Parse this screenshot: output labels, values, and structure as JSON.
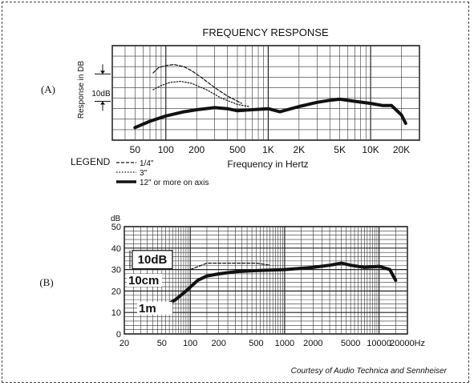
{
  "chart_data": [
    {
      "type": "line",
      "panel_label": "(A)",
      "title": "FREQUENCY RESPONSE",
      "xlabel": "Frequency in Hertz",
      "ylabel": "Response in DB",
      "scale_label": "10dB",
      "x_scale": "log",
      "xlim": [
        30,
        30000
      ],
      "ylim": [
        0,
        9
      ],
      "x_ticks": [
        {
          "label": "50",
          "value": 50
        },
        {
          "label": "100",
          "value": 100
        },
        {
          "label": "200",
          "value": 200
        },
        {
          "label": "500",
          "value": 500
        },
        {
          "label": "1K",
          "value": 1000
        },
        {
          "label": "2K",
          "value": 2000
        },
        {
          "label": "5K",
          "value": 5000
        },
        {
          "label": "10K",
          "value": 10000
        },
        {
          "label": "20K",
          "value": 20000
        }
      ],
      "legend_title": "LEGEND",
      "legend_placement": "bottom-left",
      "series": [
        {
          "name": "1/4\"",
          "style": "dashed",
          "x": [
            75,
            85,
            100,
            120,
            150,
            180,
            220,
            300,
            400,
            550
          ],
          "y": [
            6.4,
            6.9,
            7.1,
            7.2,
            7.0,
            6.6,
            6.0,
            5.0,
            4.2,
            3.5
          ]
        },
        {
          "name": "3\"",
          "style": "dotted",
          "x": [
            75,
            90,
            110,
            140,
            180,
            250,
            350,
            500,
            650
          ],
          "y": [
            4.8,
            5.2,
            5.5,
            5.6,
            5.4,
            4.8,
            4.0,
            3.4,
            3.2
          ]
        },
        {
          "name": "12\" or more on axis",
          "style": "solid",
          "x": [
            50,
            70,
            100,
            150,
            200,
            300,
            400,
            500,
            700,
            1000,
            1300,
            2000,
            3000,
            4000,
            5000,
            7000,
            10000,
            13000,
            16000,
            20000,
            22000
          ],
          "y": [
            1.2,
            1.8,
            2.3,
            2.7,
            2.9,
            3.1,
            3.0,
            2.8,
            2.9,
            3.0,
            2.7,
            3.2,
            3.6,
            3.8,
            3.9,
            3.7,
            3.5,
            3.3,
            3.3,
            2.4,
            1.6
          ]
        }
      ]
    },
    {
      "type": "line",
      "panel_label": "(B)",
      "ylabel": "dB",
      "x_scale": "log",
      "xlim": [
        20,
        20000
      ],
      "ylim": [
        0,
        50
      ],
      "y_ticks": [
        "0",
        "10",
        "20",
        "30",
        "40",
        "50"
      ],
      "x_ticks": [
        {
          "label": "20",
          "value": 20
        },
        {
          "label": "50",
          "value": 50
        },
        {
          "label": "100",
          "value": 100
        },
        {
          "label": "200",
          "value": 200
        },
        {
          "label": "500",
          "value": 500
        },
        {
          "label": "1000",
          "value": 1000
        },
        {
          "label": "2000",
          "value": 2000
        },
        {
          "label": "5000",
          "value": 5000
        },
        {
          "label": "10000",
          "value": 10000
        },
        {
          "label": "20000Hz",
          "value": 20000
        }
      ],
      "scale_label": "10dB",
      "series": [
        {
          "name": "10cm",
          "style": "dashed",
          "x": [
            100,
            150,
            200,
            300,
            500,
            700
          ],
          "y": [
            30,
            33,
            33,
            33,
            33,
            32
          ]
        },
        {
          "name": "1m",
          "style": "solid",
          "x": [
            50,
            70,
            90,
            120,
            150,
            200,
            300,
            500,
            1000,
            2000,
            3000,
            4000,
            5000,
            7000,
            10000,
            13000,
            15000
          ],
          "y": [
            12,
            16,
            20,
            25,
            27,
            28,
            29,
            29.5,
            30,
            31,
            32,
            33,
            32,
            31,
            31.5,
            30,
            25
          ]
        }
      ]
    }
  ],
  "credit": "Courtesy of Audio Technica and Sennheiser"
}
